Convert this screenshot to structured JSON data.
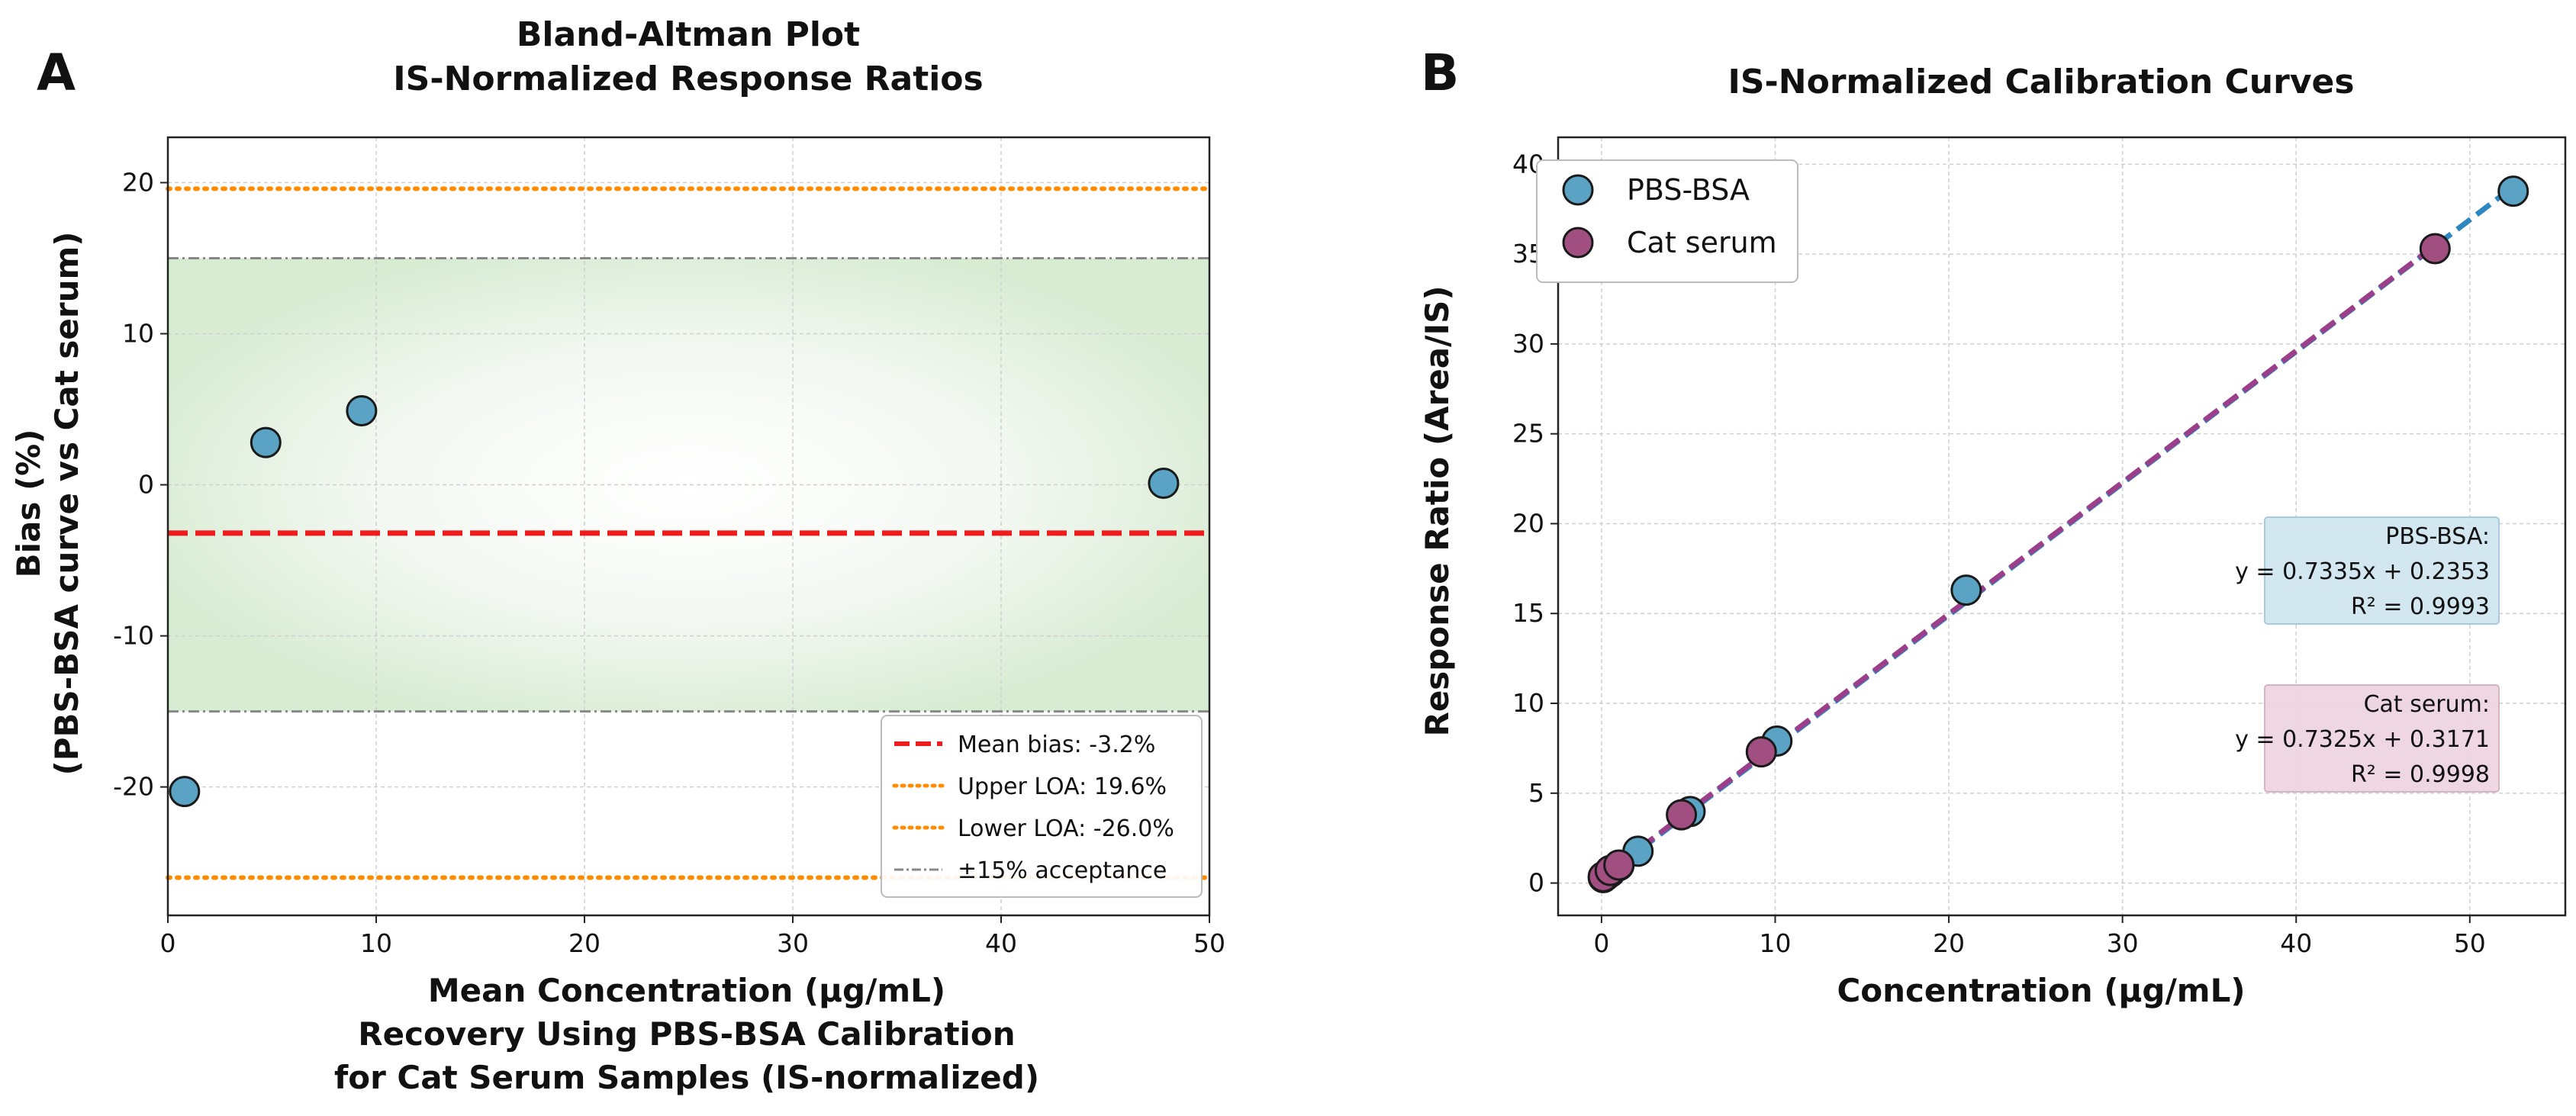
{
  "chart_data": [
    {
      "panel": "A",
      "type": "scatter",
      "title": "Bland-Altman Plot",
      "subtitle": "IS-Normalized Response Ratios",
      "xlabel": "Mean Concentration (µg/mL)",
      "ylabel_line1": "Bias (%)",
      "ylabel_line2": "(PBS-BSA curve vs Cat serum)",
      "caption_line1": "Recovery Using PBS-BSA Calibration",
      "caption_line2": "for Cat Serum Samples (IS-normalized)",
      "xlim": [
        0,
        50
      ],
      "ylim": [
        -28.5,
        23
      ],
      "xticks": [
        0,
        10,
        20,
        30,
        40,
        50
      ],
      "yticks": [
        -20,
        -10,
        0,
        10,
        20
      ],
      "grid": true,
      "legend_position": "lower-right",
      "series": [
        {
          "name": "",
          "color": "#5ba3c4",
          "points": [
            {
              "x": 0.8,
              "y": -20.3
            },
            {
              "x": 4.7,
              "y": 2.8
            },
            {
              "x": 9.3,
              "y": 4.9
            },
            {
              "x": 47.8,
              "y": 0.1
            }
          ]
        }
      ],
      "reference_lines": {
        "mean_bias": {
          "value": -3.2,
          "label": "Mean bias: -3.2%",
          "color": "#ee1c1c"
        },
        "upper_loa": {
          "value": 19.6,
          "label": "Upper LOA: 19.6%",
          "color": "#ff8c00"
        },
        "lower_loa": {
          "value": -26.0,
          "label": "Lower LOA: -26.0%",
          "color": "#ff8c00"
        },
        "acceptance": {
          "upper": 15,
          "lower": -15,
          "label": "±15% acceptance",
          "color": "#888888",
          "band_color": "#d8ecd4"
        }
      }
    },
    {
      "panel": "B",
      "type": "scatter",
      "title": "IS-Normalized Calibration Curves",
      "xlabel": "Concentration (µg/mL)",
      "ylabel": "Response Ratio (Area/IS)",
      "xlim": [
        -2.5,
        55.5
      ],
      "ylim": [
        -1.8,
        41.5
      ],
      "xticks": [
        0,
        10,
        20,
        30,
        40,
        50
      ],
      "yticks": [
        0,
        5,
        10,
        15,
        20,
        25,
        30,
        35,
        40
      ],
      "grid": true,
      "legend_position": "top-left",
      "series": [
        {
          "name": "PBS-BSA",
          "color": "#5ba3c4",
          "fit_color": "#2e86c1",
          "slope": 0.7335,
          "intercept": 0.2353,
          "fit_range": [
            0,
            52.5
          ],
          "points": [
            {
              "x": 0.1,
              "y": 0.3
            },
            {
              "x": 0.25,
              "y": 0.42
            },
            {
              "x": 0.5,
              "y": 0.6
            },
            {
              "x": 1.0,
              "y": 0.97
            },
            {
              "x": 2.1,
              "y": 1.77
            },
            {
              "x": 5.1,
              "y": 3.98
            },
            {
              "x": 10.1,
              "y": 7.9
            },
            {
              "x": 21.0,
              "y": 16.3
            },
            {
              "x": 52.5,
              "y": 38.5
            }
          ],
          "equation": {
            "name_label": "PBS-BSA:",
            "eq": "y = 0.7335x + 0.2353",
            "r2": "R² = 0.9993",
            "box_color": "#cde4ee"
          }
        },
        {
          "name": "Cat serum",
          "color": "#a04f80",
          "fit_color": "#9b3f8a",
          "slope": 0.7325,
          "intercept": 0.3171,
          "fit_range": [
            0,
            48
          ],
          "points": [
            {
              "x": 0.1,
              "y": 0.35
            },
            {
              "x": 0.5,
              "y": 0.7
            },
            {
              "x": 1.0,
              "y": 1.0
            },
            {
              "x": 4.6,
              "y": 3.8
            },
            {
              "x": 9.2,
              "y": 7.3
            },
            {
              "x": 48.0,
              "y": 35.3
            }
          ],
          "equation": {
            "name_label": "Cat serum:",
            "eq": "y = 0.7325x + 0.3171",
            "r2": "R² = 0.9998",
            "box_color": "#ecd3e0"
          }
        }
      ]
    }
  ]
}
